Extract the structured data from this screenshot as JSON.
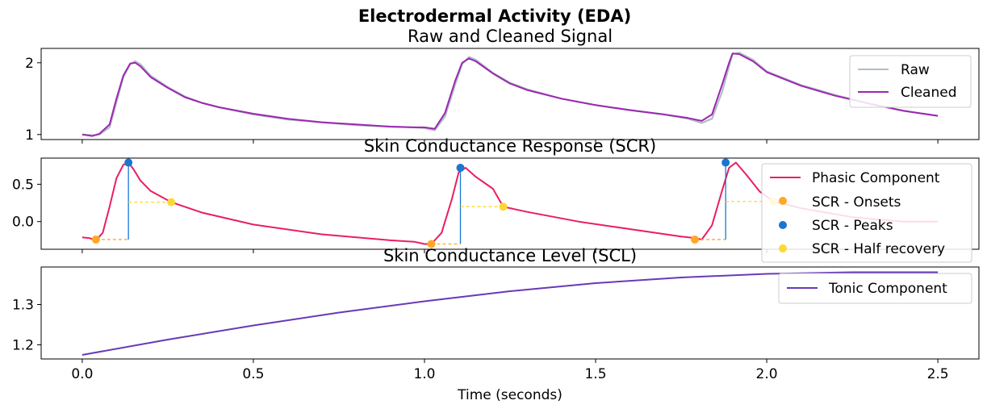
{
  "figure": {
    "suptitle": "Electrodermal Activity (EDA)",
    "xlabel": "Time (seconds)"
  },
  "colors": {
    "raw": "#b0bec5",
    "cleaned": "#9c27b0",
    "phasic": "#e91e63",
    "onsets": "#ffa726",
    "peaks": "#1976d2",
    "half_recovery": "#fdd835",
    "tonic": "#673ab7"
  },
  "chart_data": [
    {
      "type": "line",
      "title": "Raw and Cleaned Signal",
      "xlim": [
        -0.12,
        2.62
      ],
      "ylim": [
        0.93,
        2.2
      ],
      "xticks": [
        0.0,
        0.5,
        1.0,
        1.5,
        2.0,
        2.5
      ],
      "yticks": [
        1,
        2
      ],
      "ytick_labels": [
        "1",
        "2"
      ],
      "legend_position": "top-right",
      "series": [
        {
          "name": "Raw",
          "x": [
            0.0,
            0.03,
            0.05,
            0.08,
            0.1,
            0.12,
            0.14,
            0.155,
            0.17,
            0.2,
            0.25,
            0.3,
            0.35,
            0.4,
            0.5,
            0.6,
            0.7,
            0.8,
            0.9,
            0.97,
            1.0,
            1.03,
            1.06,
            1.09,
            1.11,
            1.13,
            1.15,
            1.2,
            1.25,
            1.3,
            1.4,
            1.5,
            1.6,
            1.7,
            1.77,
            1.81,
            1.84,
            1.87,
            1.89,
            1.9,
            1.92,
            1.96,
            2.0,
            2.1,
            2.2,
            2.3,
            2.4,
            2.5
          ],
          "y": [
            1.0,
            0.99,
            1.0,
            1.1,
            1.45,
            1.8,
            1.98,
            2.02,
            1.98,
            1.82,
            1.66,
            1.53,
            1.44,
            1.38,
            1.28,
            1.21,
            1.17,
            1.13,
            1.11,
            1.1,
            1.09,
            1.06,
            1.25,
            1.7,
            1.98,
            2.08,
            2.04,
            1.86,
            1.72,
            1.63,
            1.5,
            1.41,
            1.34,
            1.28,
            1.22,
            1.16,
            1.22,
            1.6,
            1.95,
            2.12,
            2.14,
            2.04,
            1.88,
            1.69,
            1.55,
            1.43,
            1.33,
            1.26
          ]
        },
        {
          "name": "Cleaned",
          "x": [
            0.0,
            0.03,
            0.05,
            0.08,
            0.1,
            0.12,
            0.14,
            0.155,
            0.17,
            0.2,
            0.25,
            0.3,
            0.35,
            0.4,
            0.5,
            0.6,
            0.7,
            0.8,
            0.9,
            0.97,
            1.0,
            1.03,
            1.06,
            1.09,
            1.11,
            1.13,
            1.15,
            1.2,
            1.25,
            1.3,
            1.4,
            1.5,
            1.6,
            1.7,
            1.77,
            1.81,
            1.84,
            1.87,
            1.89,
            1.9,
            1.92,
            1.96,
            2.0,
            2.1,
            2.2,
            2.3,
            2.4,
            2.5
          ],
          "y": [
            1.0,
            0.98,
            1.01,
            1.14,
            1.5,
            1.82,
            1.99,
            2.0,
            1.95,
            1.8,
            1.65,
            1.52,
            1.44,
            1.38,
            1.29,
            1.22,
            1.17,
            1.14,
            1.11,
            1.1,
            1.1,
            1.08,
            1.3,
            1.75,
            2.0,
            2.06,
            2.02,
            1.85,
            1.71,
            1.62,
            1.5,
            1.41,
            1.34,
            1.28,
            1.23,
            1.19,
            1.28,
            1.7,
            2.0,
            2.13,
            2.12,
            2.02,
            1.87,
            1.68,
            1.54,
            1.43,
            1.33,
            1.26
          ]
        }
      ]
    },
    {
      "type": "line",
      "title": "Skin Conductance Response (SCR)",
      "xlim": [
        -0.12,
        2.62
      ],
      "ylim": [
        -0.37,
        0.85
      ],
      "xticks": [
        0.0,
        0.5,
        1.0,
        1.5,
        2.0,
        2.5
      ],
      "yticks": [
        0.0,
        0.5
      ],
      "ytick_labels": [
        "0.0",
        "0.5"
      ],
      "legend_position": "top-right",
      "series": [
        {
          "name": "Phasic Component",
          "x": [
            0.0,
            0.02,
            0.04,
            0.06,
            0.08,
            0.1,
            0.12,
            0.135,
            0.15,
            0.17,
            0.2,
            0.26,
            0.35,
            0.5,
            0.7,
            0.9,
            0.97,
            1.0,
            1.02,
            1.05,
            1.08,
            1.1,
            1.12,
            1.15,
            1.2,
            1.23,
            1.3,
            1.45,
            1.6,
            1.75,
            1.79,
            1.81,
            1.84,
            1.87,
            1.89,
            1.91,
            1.94,
            1.98,
            2.02,
            2.1,
            2.25,
            2.4,
            2.5
          ],
          "y": [
            -0.21,
            -0.22,
            -0.25,
            -0.15,
            0.2,
            0.58,
            0.76,
            0.79,
            0.7,
            0.55,
            0.41,
            0.26,
            0.12,
            -0.04,
            -0.17,
            -0.25,
            -0.27,
            -0.3,
            -0.3,
            -0.15,
            0.3,
            0.66,
            0.72,
            0.6,
            0.44,
            0.2,
            0.13,
            0.0,
            -0.1,
            -0.2,
            -0.22,
            -0.24,
            -0.05,
            0.42,
            0.72,
            0.79,
            0.63,
            0.4,
            0.27,
            0.18,
            0.06,
            0.0,
            0.0
          ]
        }
      ],
      "onsets": {
        "name": "SCR - Onsets",
        "x": [
          0.04,
          1.02,
          1.79
        ],
        "y": [
          -0.24,
          -0.3,
          -0.24
        ]
      },
      "peaks": {
        "name": "SCR - Peaks",
        "x": [
          0.135,
          1.105,
          1.88
        ],
        "y": [
          0.79,
          0.72,
          0.79
        ]
      },
      "half_recovery": {
        "name": "SCR - Half recovery",
        "x": [
          0.26,
          1.23,
          2.02
        ],
        "y": [
          0.26,
          0.2,
          0.27
        ]
      }
    },
    {
      "type": "line",
      "title": "Skin Conductance Level (SCL)",
      "xlim": [
        -0.12,
        2.62
      ],
      "ylim": [
        1.165,
        1.393
      ],
      "xticks": [
        0.0,
        0.5,
        1.0,
        1.5,
        2.0,
        2.5
      ],
      "xtick_labels": [
        "0.0",
        "0.5",
        "1.0",
        "1.5",
        "2.0",
        "2.5"
      ],
      "yticks": [
        1.2,
        1.3
      ],
      "ytick_labels": [
        "1.2",
        "1.3"
      ],
      "legend_position": "top-right",
      "series": [
        {
          "name": "Tonic Component",
          "x": [
            0.0,
            0.25,
            0.5,
            0.75,
            1.0,
            1.25,
            1.5,
            1.75,
            2.0,
            2.25,
            2.5
          ],
          "y": [
            1.175,
            1.213,
            1.248,
            1.28,
            1.308,
            1.333,
            1.353,
            1.367,
            1.376,
            1.38,
            1.38
          ]
        }
      ]
    }
  ]
}
